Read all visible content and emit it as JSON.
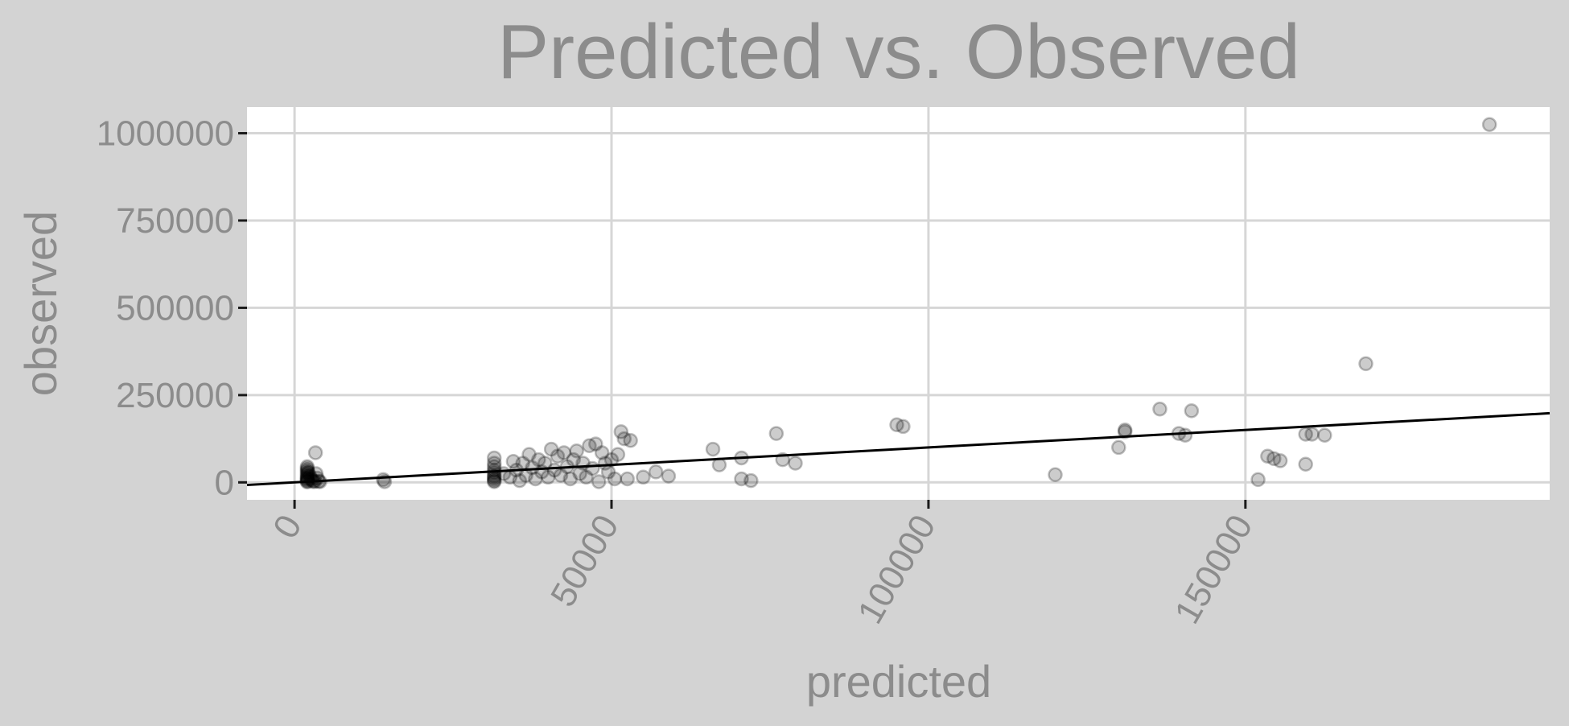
{
  "chart_data": {
    "type": "scatter",
    "title": "Predicted vs. Observed",
    "xlabel": "predicted",
    "ylabel": "observed",
    "xlim": [
      -7500,
      198000
    ],
    "ylim": [
      -50000,
      1075000
    ],
    "x_ticks": [
      0,
      50000,
      100000,
      150000
    ],
    "x_tick_labels": [
      "0",
      "50000",
      "100000",
      "150000"
    ],
    "y_ticks": [
      0,
      250000,
      500000,
      750000,
      1000000
    ],
    "y_tick_labels": [
      "0",
      "250000",
      "500000",
      "750000",
      "1000000"
    ],
    "grid": true,
    "fit_line": {
      "x": [
        -7500,
        198000
      ],
      "y": [
        -7500,
        198000
      ]
    },
    "points": [
      [
        2000,
        45000
      ],
      [
        2000,
        40000
      ],
      [
        2000,
        35000
      ],
      [
        2000,
        30000
      ],
      [
        2000,
        25000
      ],
      [
        2000,
        20000
      ],
      [
        2000,
        15000
      ],
      [
        2000,
        12000
      ],
      [
        2000,
        9000
      ],
      [
        2000,
        6000
      ],
      [
        2000,
        3000
      ],
      [
        2000,
        1000
      ],
      [
        2200,
        28000
      ],
      [
        2400,
        18000
      ],
      [
        2600,
        10000
      ],
      [
        2800,
        5000
      ],
      [
        3000,
        2000
      ],
      [
        3200,
        3000
      ],
      [
        3300,
        85000
      ],
      [
        3400,
        25000
      ],
      [
        3600,
        12000
      ],
      [
        3800,
        3000
      ],
      [
        4000,
        2000
      ],
      [
        14000,
        8000
      ],
      [
        14200,
        2000
      ],
      [
        31500,
        70000
      ],
      [
        31500,
        55000
      ],
      [
        31500,
        45000
      ],
      [
        31500,
        35000
      ],
      [
        31500,
        28000
      ],
      [
        31500,
        20000
      ],
      [
        31500,
        15000
      ],
      [
        31500,
        10000
      ],
      [
        31500,
        5000
      ],
      [
        31500,
        2000
      ],
      [
        33000,
        25000
      ],
      [
        34000,
        15000
      ],
      [
        34500,
        60000
      ],
      [
        35000,
        35000
      ],
      [
        35500,
        5000
      ],
      [
        36000,
        55000
      ],
      [
        36500,
        20000
      ],
      [
        37000,
        80000
      ],
      [
        37500,
        42000
      ],
      [
        38000,
        10000
      ],
      [
        38500,
        65000
      ],
      [
        39000,
        30000
      ],
      [
        39500,
        55000
      ],
      [
        40000,
        15000
      ],
      [
        40500,
        95000
      ],
      [
        41000,
        35000
      ],
      [
        41500,
        75000
      ],
      [
        42000,
        20000
      ],
      [
        42500,
        85000
      ],
      [
        43000,
        45000
      ],
      [
        43500,
        10000
      ],
      [
        44000,
        65000
      ],
      [
        44500,
        90000
      ],
      [
        45000,
        25000
      ],
      [
        45500,
        55000
      ],
      [
        46000,
        15000
      ],
      [
        46500,
        105000
      ],
      [
        47000,
        40000
      ],
      [
        47500,
        110000
      ],
      [
        48000,
        2000
      ],
      [
        48500,
        85000
      ],
      [
        49000,
        55000
      ],
      [
        49500,
        30000
      ],
      [
        50000,
        65000
      ],
      [
        50500,
        10000
      ],
      [
        51000,
        80000
      ],
      [
        51500,
        145000
      ],
      [
        52000,
        125000
      ],
      [
        52500,
        10000
      ],
      [
        53000,
        120000
      ],
      [
        55000,
        15000
      ],
      [
        57000,
        30000
      ],
      [
        59000,
        18000
      ],
      [
        66000,
        95000
      ],
      [
        67000,
        50000
      ],
      [
        70500,
        70000
      ],
      [
        70500,
        10000
      ],
      [
        72000,
        5000
      ],
      [
        76000,
        140000
      ],
      [
        77000,
        65000
      ],
      [
        79000,
        55000
      ],
      [
        95000,
        165000
      ],
      [
        96000,
        160000
      ],
      [
        120000,
        22000
      ],
      [
        130000,
        100000
      ],
      [
        131000,
        150000
      ],
      [
        131000,
        145000
      ],
      [
        136500,
        210000
      ],
      [
        139500,
        140000
      ],
      [
        140500,
        135000
      ],
      [
        141500,
        205000
      ],
      [
        152000,
        8000
      ],
      [
        153500,
        75000
      ],
      [
        154500,
        68000
      ],
      [
        155500,
        62000
      ],
      [
        159500,
        138000
      ],
      [
        159500,
        52000
      ],
      [
        160500,
        138000
      ],
      [
        162500,
        135000
      ],
      [
        169000,
        340000
      ],
      [
        188500,
        1025000
      ]
    ]
  }
}
